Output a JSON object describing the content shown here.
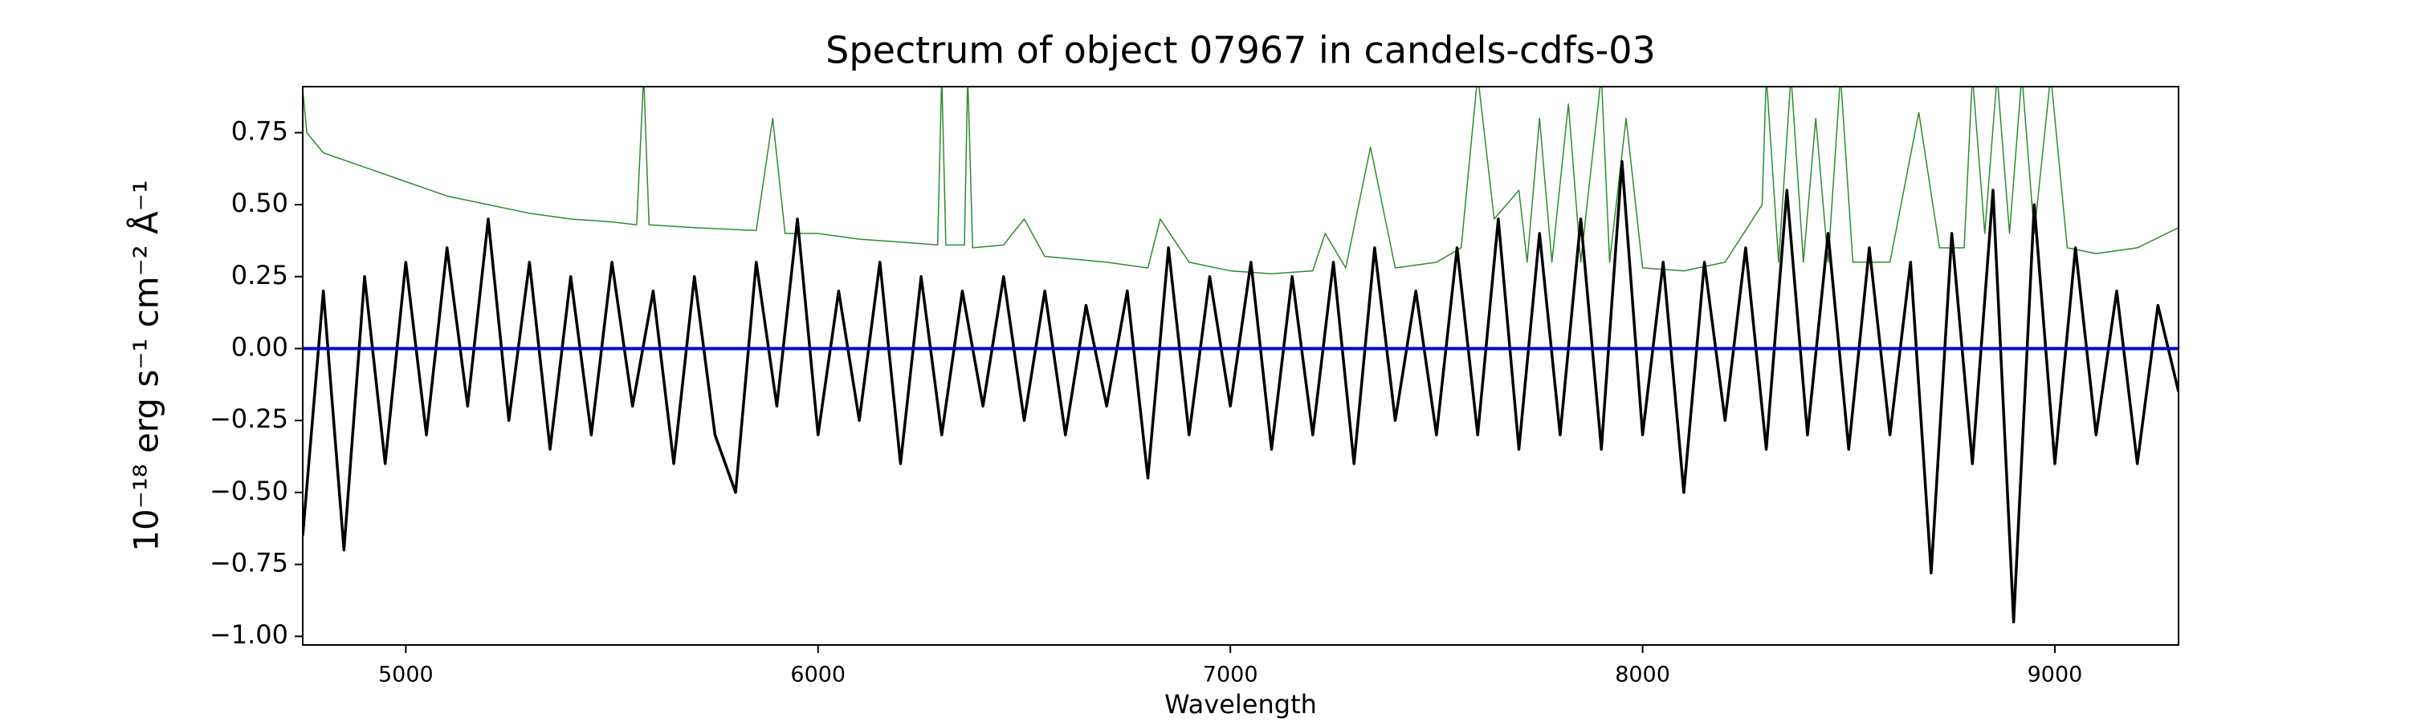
{
  "chart_data": {
    "type": "line",
    "title": "Spectrum of object 07967 in candels-cdfs-03",
    "x_label": "Wavelength",
    "y_label": "10⁻¹⁸ erg s⁻¹ cm⁻² Å⁻¹",
    "xlim": [
      4750,
      9300
    ],
    "ylim": [
      -1.03,
      0.91
    ],
    "xticks": [
      5000,
      6000,
      7000,
      8000,
      9000
    ],
    "yticks": [
      {
        "value": -1,
        "label": "−1.00"
      },
      {
        "value": -0.75,
        "label": "−0.75"
      },
      {
        "value": -0.5,
        "label": "−0.50"
      },
      {
        "value": -0.25,
        "label": "−0.25"
      },
      {
        "value": 0,
        "label": "0.00"
      },
      0.25,
      {
        "value": 0.5,
        "label": "0.50"
      },
      0.75
    ],
    "series": [
      {
        "color": "#2e8b2e",
        "x": [
          4750,
          4760,
          4800,
          4900,
          5000,
          5100,
          5200,
          5300,
          5400,
          5500,
          5560,
          5577,
          5590,
          5700,
          5850,
          5890,
          5920,
          6000,
          6100,
          6200,
          6290,
          6300,
          6310,
          6355,
          6363,
          6375,
          6450,
          6500,
          6550,
          6700,
          6800,
          6830,
          6900,
          7000,
          7100,
          7200,
          7230,
          7280,
          7340,
          7400,
          7500,
          7560,
          7600,
          7640,
          7700,
          7720,
          7750,
          7780,
          7820,
          7850,
          7900,
          7920,
          7960,
          8000,
          8100,
          8200,
          8290,
          8300,
          8330,
          8360,
          8390,
          8420,
          8450,
          8480,
          8510,
          8600,
          8670,
          8720,
          8780,
          8800,
          8830,
          8860,
          8890,
          8920,
          8950,
          8990,
          9030,
          9100,
          9200,
          9300
        ],
        "values": [
          0.9,
          0.75,
          0.68,
          0.63,
          0.58,
          0.53,
          0.5,
          0.47,
          0.45,
          0.44,
          0.43,
          0.95,
          0.43,
          0.42,
          0.41,
          0.8,
          0.4,
          0.4,
          0.38,
          0.37,
          0.36,
          0.95,
          0.36,
          0.36,
          0.95,
          0.35,
          0.36,
          0.45,
          0.32,
          0.3,
          0.28,
          0.45,
          0.3,
          0.27,
          0.26,
          0.27,
          0.4,
          0.28,
          0.7,
          0.28,
          0.3,
          0.35,
          0.95,
          0.45,
          0.55,
          0.3,
          0.8,
          0.3,
          0.85,
          0.3,
          0.95,
          0.3,
          0.8,
          0.28,
          0.27,
          0.3,
          0.5,
          0.95,
          0.3,
          0.95,
          0.3,
          0.8,
          0.3,
          0.95,
          0.3,
          0.3,
          0.82,
          0.35,
          0.35,
          0.95,
          0.4,
          0.95,
          0.4,
          0.95,
          0.4,
          0.95,
          0.35,
          0.33,
          0.35,
          0.42
        ]
      },
      {
        "color": "#000000",
        "x": [
          4750,
          4800,
          4850,
          4900,
          4950,
          5000,
          5050,
          5100,
          5150,
          5200,
          5250,
          5300,
          5350,
          5400,
          5450,
          5500,
          5550,
          5600,
          5650,
          5700,
          5750,
          5800,
          5850,
          5900,
          5950,
          6000,
          6050,
          6100,
          6150,
          6200,
          6250,
          6300,
          6350,
          6400,
          6450,
          6500,
          6550,
          6600,
          6650,
          6700,
          6750,
          6800,
          6850,
          6900,
          6950,
          7000,
          7050,
          7100,
          7150,
          7200,
          7250,
          7300,
          7350,
          7400,
          7450,
          7500,
          7550,
          7600,
          7650,
          7700,
          7750,
          7800,
          7850,
          7900,
          7950,
          8000,
          8050,
          8100,
          8150,
          8200,
          8250,
          8300,
          8350,
          8400,
          8450,
          8500,
          8550,
          8600,
          8650,
          8700,
          8750,
          8800,
          8850,
          8900,
          8950,
          9000,
          9050,
          9100,
          9150,
          9200,
          9250,
          9300
        ],
        "values": [
          -0.65,
          0.2,
          -0.7,
          0.25,
          -0.4,
          0.3,
          -0.3,
          0.35,
          -0.2,
          0.45,
          -0.25,
          0.3,
          -0.35,
          0.25,
          -0.3,
          0.3,
          -0.2,
          0.2,
          -0.4,
          0.25,
          -0.3,
          -0.5,
          0.3,
          -0.2,
          0.45,
          -0.3,
          0.2,
          -0.25,
          0.3,
          -0.4,
          0.25,
          -0.3,
          0.2,
          -0.2,
          0.25,
          -0.25,
          0.2,
          -0.3,
          0.15,
          -0.2,
          0.2,
          -0.45,
          0.35,
          -0.3,
          0.25,
          -0.2,
          0.3,
          -0.35,
          0.25,
          -0.3,
          0.3,
          -0.4,
          0.35,
          -0.25,
          0.2,
          -0.3,
          0.35,
          -0.3,
          0.45,
          -0.35,
          0.4,
          -0.3,
          0.45,
          -0.35,
          0.65,
          -0.3,
          0.3,
          -0.5,
          0.3,
          -0.25,
          0.35,
          -0.35,
          0.55,
          -0.3,
          0.4,
          -0.35,
          0.35,
          -0.3,
          0.3,
          -0.78,
          0.4,
          -0.4,
          0.55,
          -0.95,
          0.5,
          -0.4,
          0.35,
          -0.3,
          0.2,
          -0.4,
          0.15,
          -0.15
        ]
      },
      {
        "color": "#0000cc",
        "x": [
          4750,
          9300
        ],
        "values": [
          0,
          0
        ]
      }
    ]
  }
}
